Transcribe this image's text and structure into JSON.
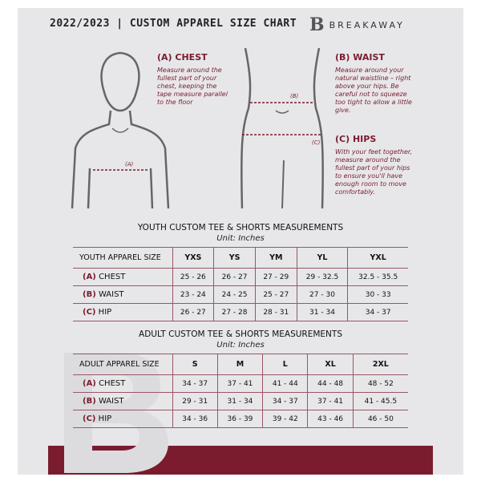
{
  "header": {
    "title": "2022/2023 | CUSTOM APPAREL SIZE CHART",
    "logo_mark": "B",
    "logo_text": "BREAKAWAY"
  },
  "chest": {
    "title": "(A) CHEST",
    "desc": "Measure around the fullest part of your chest, keeping the tape measure parallel to the floor",
    "marker": "(A)"
  },
  "waist": {
    "title": "(B) WAIST",
    "desc": "Measure around your natural waistline – right above your hips. Be careful not to squeeze too tight to allow a little give.",
    "marker": "(B)"
  },
  "hips": {
    "title": "(C) HIPS",
    "desc": "With your feet together, measure around the fullest part of your hips to ensure you'll have enough room to move comfortably.",
    "marker": "(C)"
  },
  "youth": {
    "title": "YOUTH CUSTOM TEE & SHORTS MEASUREMENTS",
    "unit": "Unit: Inches",
    "header": "YOUTH APPAREL SIZE",
    "sizes": [
      "YXS",
      "YS",
      "YM",
      "YL",
      "YXL"
    ],
    "rows": [
      {
        "code": "(A)",
        "name": "CHEST",
        "values": [
          "25 - 26",
          "26 - 27",
          "27 - 29",
          "29 - 32.5",
          "32.5 - 35.5"
        ]
      },
      {
        "code": "(B)",
        "name": "WAIST",
        "values": [
          "23 - 24",
          "24 - 25",
          "25 - 27",
          "27 - 30",
          "30 - 33"
        ]
      },
      {
        "code": "(C)",
        "name": "HIP",
        "values": [
          "26 - 27",
          "27 - 28",
          "28 - 31",
          "31 - 34",
          "34 - 37"
        ]
      }
    ]
  },
  "adult": {
    "title": "ADULT CUSTOM TEE & SHORTS MEASUREMENTS",
    "unit": "Unit: Inches",
    "header": "ADULT APPAREL SIZE",
    "sizes": [
      "S",
      "M",
      "L",
      "XL",
      "2XL"
    ],
    "rows": [
      {
        "code": "(A)",
        "name": "CHEST",
        "values": [
          "34 - 37",
          "37 - 41",
          "41 - 44",
          "44 - 48",
          "48 - 52"
        ]
      },
      {
        "code": "(B)",
        "name": "WAIST",
        "values": [
          "29 - 31",
          "31 - 34",
          "34 - 37",
          "37 - 41",
          "41 - 45.5"
        ]
      },
      {
        "code": "(C)",
        "name": "HIP",
        "values": [
          "34 - 36",
          "36 - 39",
          "39 - 42",
          "43 - 46",
          "46 - 50"
        ]
      }
    ]
  },
  "colors": {
    "accent": "#7a1c2e",
    "panel": "#e7e7e9"
  }
}
